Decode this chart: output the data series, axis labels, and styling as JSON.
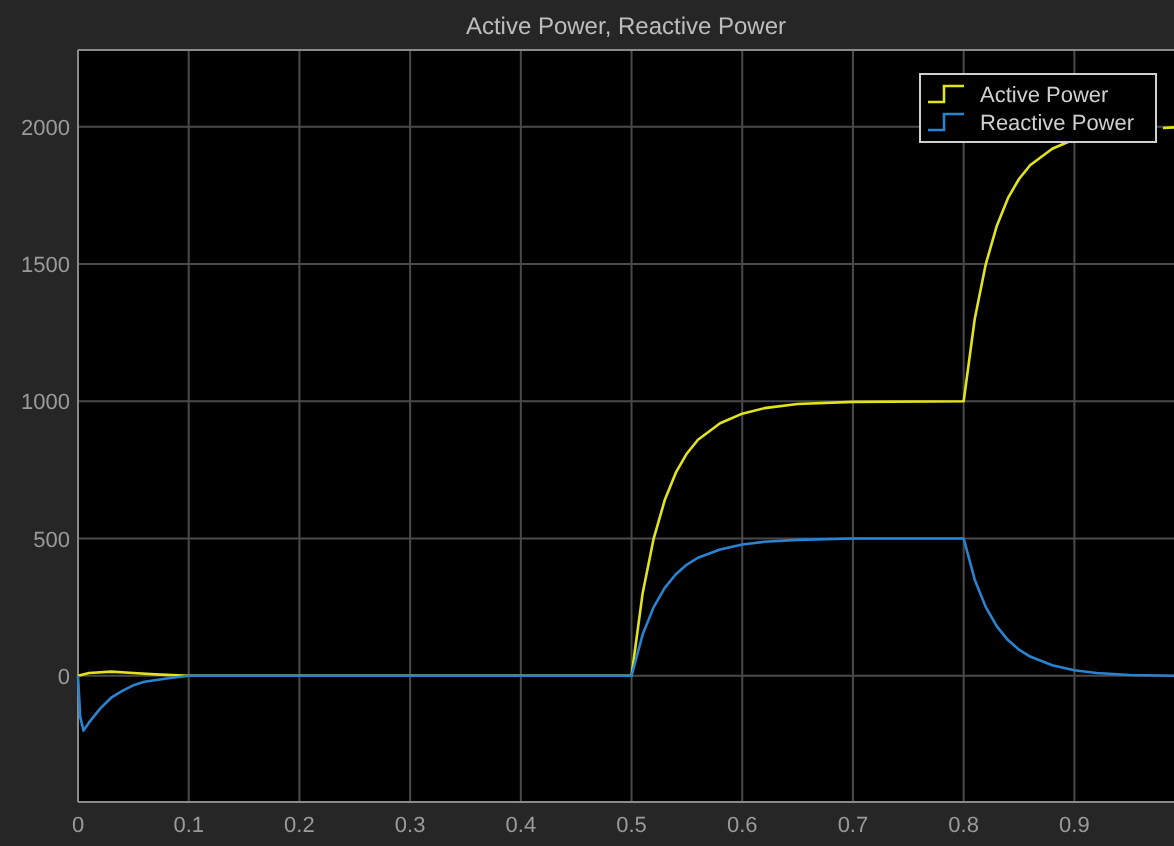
{
  "chart_data": {
    "type": "line",
    "title": "Active Power, Reactive Power",
    "xlim": [
      0,
      0.99
    ],
    "xticks": [
      0,
      0.1,
      0.2,
      0.3,
      0.4,
      0.5,
      0.6,
      0.7,
      0.8,
      0.9
    ],
    "ylim": [
      -460,
      2280
    ],
    "yticks": [
      0,
      500,
      1000,
      1500,
      2000
    ],
    "grid": true,
    "legend": "top right",
    "series": [
      {
        "name": "Active Power",
        "color": "#e3e31c",
        "x": [
          0,
          0.01,
          0.03,
          0.05,
          0.07,
          0.1,
          0.5,
          0.51,
          0.52,
          0.53,
          0.54,
          0.55,
          0.56,
          0.58,
          0.6,
          0.62,
          0.65,
          0.7,
          0.8,
          0.81,
          0.82,
          0.83,
          0.84,
          0.85,
          0.86,
          0.88,
          0.9,
          0.92,
          0.98,
          0.99
        ],
        "values": [
          0,
          10,
          15,
          10,
          5,
          0,
          0,
          300,
          500,
          640,
          740,
          810,
          860,
          920,
          955,
          975,
          990,
          998,
          1000,
          1300,
          1500,
          1640,
          1740,
          1810,
          1860,
          1920,
          1955,
          null,
          1996,
          1998
        ]
      },
      {
        "name": "Reactive Power",
        "color": "#2a83d0",
        "x": [
          0,
          0.002,
          0.005,
          0.01,
          0.02,
          0.03,
          0.04,
          0.05,
          0.06,
          0.08,
          0.1,
          0.5,
          0.51,
          0.52,
          0.53,
          0.54,
          0.55,
          0.56,
          0.58,
          0.6,
          0.62,
          0.65,
          0.7,
          0.8,
          0.81,
          0.82,
          0.83,
          0.84,
          0.85,
          0.86,
          0.88,
          0.9,
          0.92,
          0.95,
          0.99
        ],
        "values": [
          0,
          -150,
          -200,
          -170,
          -120,
          -80,
          -55,
          -35,
          -22,
          -10,
          0,
          0,
          150,
          250,
          320,
          370,
          405,
          430,
          460,
          478,
          488,
          495,
          500,
          500,
          350,
          250,
          180,
          130,
          95,
          70,
          38,
          20,
          10,
          3,
          0
        ]
      }
    ]
  }
}
